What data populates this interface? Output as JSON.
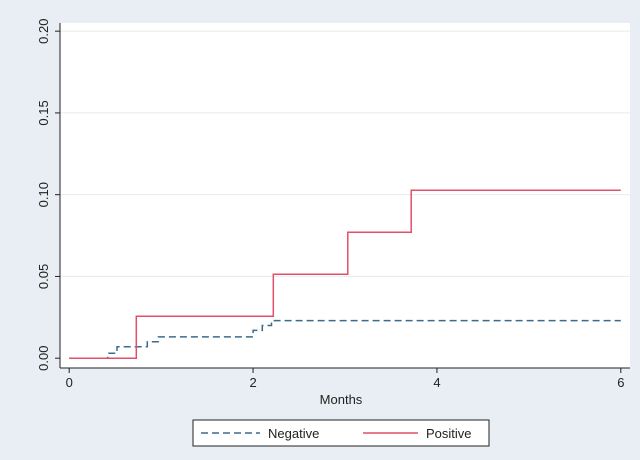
{
  "chart_data": {
    "type": "line",
    "title": "",
    "xlabel": "Months",
    "ylabel": "",
    "xlim": [
      -0.1,
      6.1
    ],
    "ylim": [
      -0.006,
      0.205
    ],
    "xticks": [
      0,
      2,
      4,
      6
    ],
    "xtick_labels": [
      "0",
      "2",
      "4",
      "6"
    ],
    "yticks": [
      0,
      0.05,
      0.1,
      0.15,
      0.2
    ],
    "ytick_labels": [
      "0.00",
      "0.05",
      "0.10",
      "0.15",
      "0.20"
    ],
    "grid": "horizontal",
    "step": true,
    "legend_position": "bottom",
    "series": [
      {
        "name": "Negative",
        "color": "#3d6b8c",
        "line_style": "dashed",
        "x": [
          0,
          0.42,
          0.52,
          0.85,
          0.97,
          2.0,
          2.1,
          2.2,
          6.0
        ],
        "y": [
          0,
          0.003,
          0.007,
          0.01,
          0.013,
          0.017,
          0.02,
          0.023,
          0.023
        ]
      },
      {
        "name": "Positive",
        "color": "#e05068",
        "line_style": "solid",
        "x": [
          0,
          0.73,
          2.22,
          3.03,
          3.72,
          6.0
        ],
        "y": [
          0,
          0.0257,
          0.0513,
          0.077,
          0.1027,
          0.1027
        ]
      }
    ]
  }
}
